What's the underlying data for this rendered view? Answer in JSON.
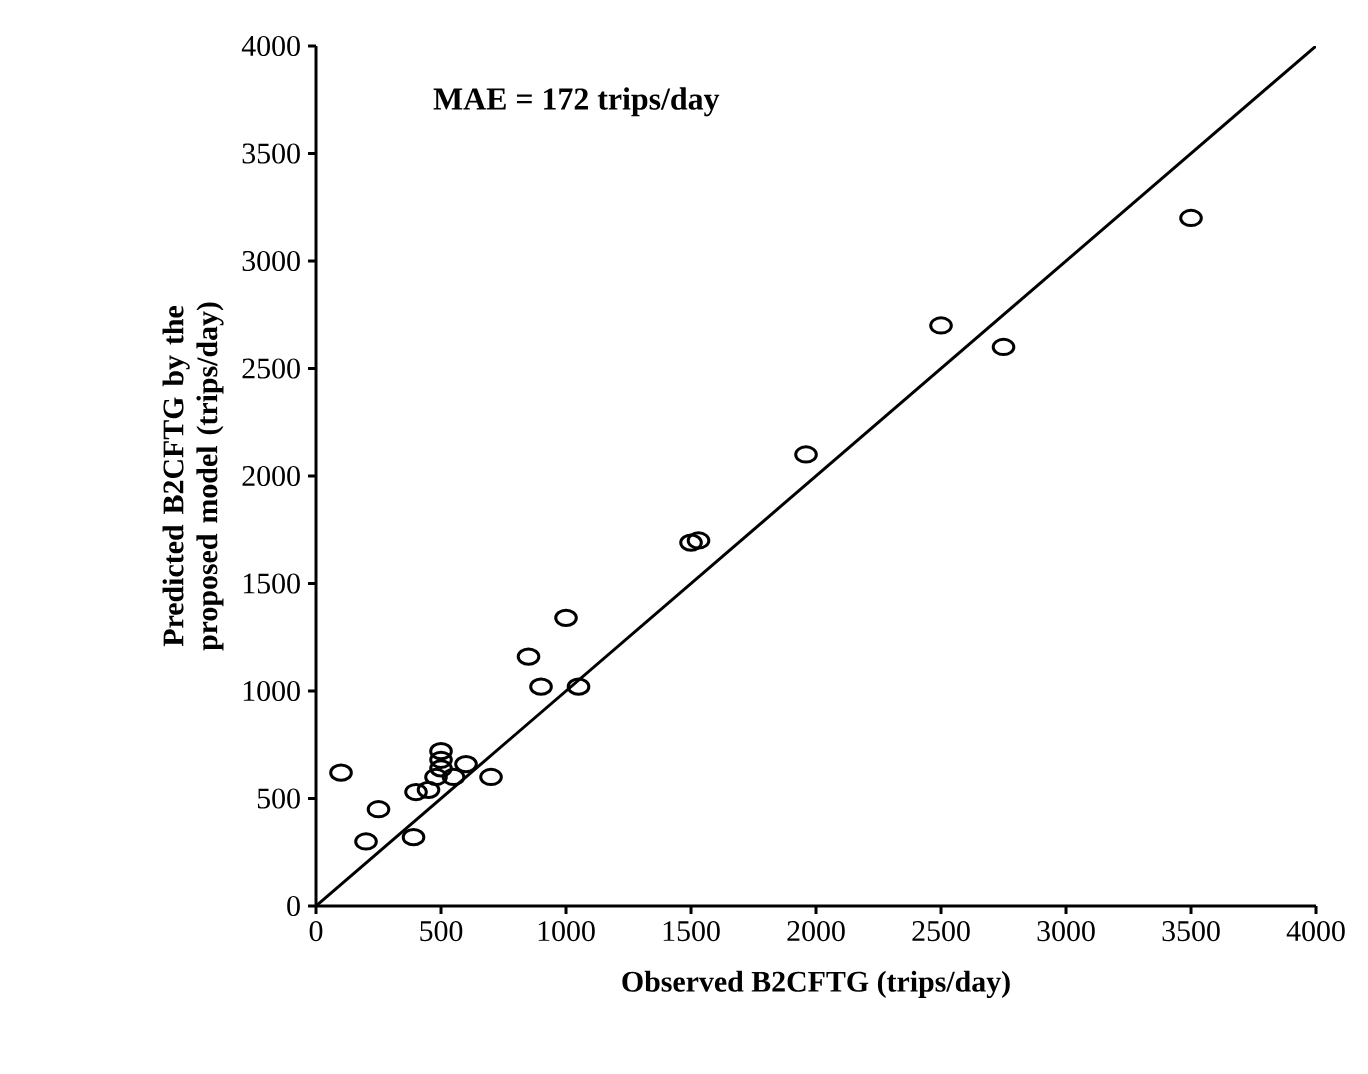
{
  "chart_data": {
    "type": "scatter",
    "xlabel": "Observed B2CFTG (trips/day)",
    "ylabel": "Predicted B2CFTG by the proposed model (trips/day)",
    "annotations": [
      "MAE = 172 trips/day"
    ],
    "xlim": [
      0,
      4000
    ],
    "ylim": [
      0,
      4000
    ],
    "xticks": [
      0,
      500,
      1000,
      1500,
      2000,
      2500,
      3000,
      3500,
      4000
    ],
    "yticks": [
      0,
      500,
      1000,
      1500,
      2000,
      2500,
      3000,
      3500,
      4000
    ],
    "grid": false,
    "series": [
      {
        "marker": "circle",
        "color": "#000000",
        "x": [
          100,
          200,
          250,
          390,
          400,
          450,
          480,
          500,
          500,
          500,
          550,
          600,
          700,
          850,
          900,
          1000,
          1050,
          1500,
          1530,
          1960,
          2500,
          2750,
          3500
        ],
        "values": [
          620,
          300,
          450,
          320,
          530,
          540,
          600,
          640,
          720,
          680,
          600,
          660,
          600,
          1160,
          1020,
          1340,
          1020,
          1690,
          1700,
          2100,
          2700,
          2600,
          3200
        ]
      },
      {
        "type": "line",
        "color": "#000000",
        "x": [
          0,
          4000
        ],
        "values": [
          0,
          4000
        ]
      }
    ]
  }
}
